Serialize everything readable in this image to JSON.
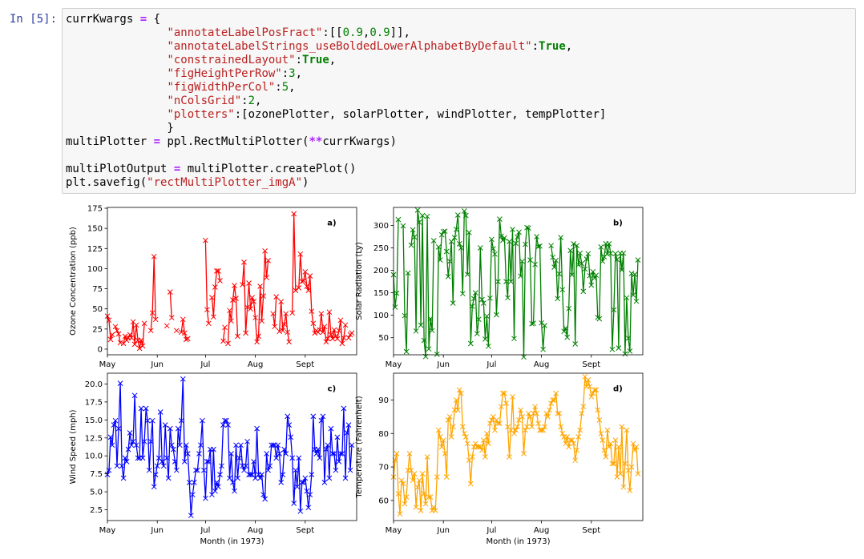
{
  "cell": {
    "prompt": "In [5]:",
    "code_lines": [
      "currKwargs = {",
      "               \"annotateLabelPosFract\":[[0.9,0.9]],",
      "               \"annotateLabelStrings_useBoldedLowerAlphabetByDefault\":True,",
      "               \"constrainedLayout\":True,",
      "               \"figHeightPerRow\":3,",
      "               \"figWidthPerCol\":5,",
      "               \"nColsGrid\":2,",
      "               \"plotters\":[ozonePlotter, solarPlotter, windPlotter, tempPlotter]",
      "               }",
      "multiPlotter = ppl.RectMultiPlotter(**currKwargs)",
      "",
      "multiPlotOutput = multiPlotter.createPlot()",
      "plt.savefig(\"rectMultiPlotter_imgA\")"
    ]
  },
  "chart_data": [
    {
      "type": "line",
      "annotation": "a)",
      "ylabel": "Ozone Concentration (ppb)",
      "xlabel": "",
      "color": "#ff0000",
      "marker": "x",
      "xlim": [
        1,
        156
      ],
      "ylim": [
        -7,
        176
      ],
      "yticks": [
        0,
        25,
        50,
        75,
        100,
        125,
        150,
        175
      ],
      "xticks": [
        {
          "label": "May",
          "day": 1
        },
        {
          "label": "Jun",
          "day": 32
        },
        {
          "label": "Jul",
          "day": 62
        },
        {
          "label": "Aug",
          "day": 93
        },
        {
          "label": "Sept",
          "day": 124
        }
      ],
      "x_description": "day index from May 1, 1973",
      "values": [
        41,
        36,
        12,
        18,
        null,
        28,
        23,
        19,
        8,
        null,
        7,
        16,
        11,
        14,
        18,
        14,
        34,
        6,
        30,
        11,
        1,
        11,
        4,
        32,
        null,
        null,
        null,
        23,
        45,
        115,
        37,
        null,
        null,
        null,
        null,
        null,
        null,
        29,
        null,
        71,
        39,
        null,
        null,
        23,
        null,
        null,
        21,
        37,
        20,
        12,
        13,
        null,
        null,
        null,
        null,
        null,
        null,
        null,
        null,
        null,
        null,
        135,
        49,
        32,
        null,
        64,
        40,
        77,
        97,
        97,
        85,
        null,
        10,
        27,
        null,
        7,
        48,
        35,
        61,
        79,
        63,
        16,
        null,
        null,
        80,
        108,
        20,
        52,
        82,
        50,
        64,
        59,
        39,
        9,
        16,
        78,
        35,
        66,
        122,
        89,
        110,
        null,
        null,
        44,
        28,
        65,
        null,
        22,
        59,
        23,
        31,
        44,
        21,
        9,
        null,
        45,
        168,
        73,
        null,
        76,
        118,
        84,
        85,
        96,
        78,
        73,
        91,
        47,
        32,
        20,
        23,
        21,
        24,
        44,
        21,
        28,
        9,
        13,
        46,
        18,
        13,
        24,
        16,
        13,
        23,
        36,
        7,
        14,
        30,
        null,
        14,
        18,
        20
      ]
    },
    {
      "type": "line",
      "annotation": "b)",
      "ylabel": "Solar Radiation (Ly)",
      "xlabel": "",
      "color": "#008000",
      "marker": "x",
      "xlim": [
        1,
        156
      ],
      "ylim": [
        12,
        340
      ],
      "yticks": [
        50,
        100,
        150,
        200,
        250,
        300
      ],
      "xticks": [
        {
          "label": "May",
          "day": 1
        },
        {
          "label": "Jun",
          "day": 32
        },
        {
          "label": "Jul",
          "day": 62
        },
        {
          "label": "Aug",
          "day": 93
        },
        {
          "label": "Sept",
          "day": 124
        }
      ],
      "x_description": "day index from May 1, 1973",
      "values": [
        190,
        118,
        149,
        313,
        null,
        null,
        299,
        99,
        19,
        194,
        null,
        256,
        290,
        274,
        65,
        334,
        307,
        78,
        322,
        44,
        8,
        320,
        25,
        92,
        66,
        266,
        null,
        13,
        252,
        223,
        279,
        286,
        287,
        242,
        186,
        220,
        264,
        127,
        273,
        291,
        323,
        259,
        250,
        148,
        332,
        322,
        191,
        284,
        37,
        120,
        137,
        150,
        59,
        91,
        250,
        135,
        127,
        47,
        98,
        31,
        138,
        269,
        248,
        236,
        101,
        175,
        314,
        276,
        267,
        272,
        175,
        139,
        264,
        175,
        291,
        48,
        260,
        274,
        285,
        187,
        220,
        7,
        258,
        295,
        294,
        223,
        81,
        82,
        213,
        275,
        253,
        254,
        83,
        24,
        77,
        null,
        null,
        null,
        255,
        229,
        207,
        222,
        137,
        192,
        273,
        157,
        64,
        71,
        51,
        115,
        244,
        190,
        259,
        36,
        255,
        212,
        238,
        215,
        153,
        203,
        225,
        237,
        188,
        167,
        197,
        183,
        189,
        95,
        92,
        252,
        220,
        230,
        259,
        236,
        259,
        238,
        24,
        112,
        237,
        224,
        27,
        238,
        201,
        238,
        14,
        139,
        49,
        20,
        193,
        145,
        191,
        131,
        223
      ]
    },
    {
      "type": "line",
      "annotation": "c)",
      "ylabel": "Wind Speed (mph)",
      "xlabel": "Month (in 1973)",
      "color": "#0000ff",
      "marker": "x",
      "xlim": [
        1,
        156
      ],
      "ylim": [
        1.0,
        21.5
      ],
      "yticks": [
        2.5,
        5.0,
        7.5,
        10.0,
        12.5,
        15.0,
        17.5,
        20.0
      ],
      "xticks": [
        {
          "label": "May",
          "day": 1
        },
        {
          "label": "Jun",
          "day": 32
        },
        {
          "label": "Jul",
          "day": 62
        },
        {
          "label": "Aug",
          "day": 93
        },
        {
          "label": "Sept",
          "day": 124
        }
      ],
      "x_description": "day index from May 1, 1973",
      "values": [
        7.4,
        8.0,
        12.6,
        11.5,
        14.3,
        14.9,
        8.6,
        13.8,
        20.1,
        8.6,
        6.9,
        9.7,
        9.2,
        10.9,
        13.2,
        11.5,
        12.0,
        18.4,
        11.5,
        9.7,
        9.7,
        16.6,
        9.7,
        12.0,
        16.6,
        14.9,
        8.0,
        12.0,
        14.9,
        5.7,
        7.4,
        8.6,
        9.7,
        16.1,
        9.2,
        8.6,
        14.3,
        9.7,
        6.9,
        13.8,
        11.5,
        10.9,
        9.2,
        8.0,
        13.8,
        11.5,
        14.9,
        20.7,
        9.2,
        11.5,
        10.3,
        6.3,
        1.7,
        4.6,
        6.3,
        8.0,
        8.0,
        10.3,
        11.5,
        14.9,
        8.0,
        4.1,
        9.2,
        9.2,
        10.9,
        4.6,
        10.9,
        5.1,
        6.3,
        5.7,
        7.4,
        8.6,
        14.3,
        14.9,
        14.9,
        14.3,
        6.9,
        10.3,
        6.3,
        5.1,
        11.5,
        6.9,
        9.7,
        11.5,
        8.6,
        8.0,
        8.6,
        12.0,
        7.4,
        7.4,
        7.4,
        9.2,
        6.9,
        13.8,
        7.4,
        6.9,
        7.4,
        4.6,
        4.0,
        10.3,
        8.0,
        8.6,
        11.5,
        11.5,
        11.5,
        9.7,
        11.5,
        10.3,
        6.3,
        7.4,
        10.9,
        10.3,
        15.5,
        14.3,
        12.6,
        9.7,
        3.4,
        8.0,
        5.7,
        9.7,
        2.3,
        6.3,
        6.3,
        6.9,
        5.1,
        2.8,
        4.6,
        7.4,
        15.5,
        10.9,
        10.3,
        10.9,
        9.7,
        14.9,
        15.5,
        6.3,
        10.9,
        11.5,
        6.9,
        13.8,
        10.3,
        10.3,
        8.0,
        12.6,
        9.2,
        10.3,
        10.3,
        16.6,
        6.9,
        13.2,
        14.3,
        8.0,
        11.5
      ]
    },
    {
      "type": "line",
      "annotation": "d)",
      "ylabel": "Temperature (Fahrenheit)",
      "xlabel": "Month (in 1973)",
      "color": "#ffa500",
      "marker": "x",
      "xlim": [
        1,
        156
      ],
      "ylim": [
        54,
        98
      ],
      "yticks": [
        60,
        70,
        80,
        90
      ],
      "xticks": [
        {
          "label": "May",
          "day": 1
        },
        {
          "label": "Jun",
          "day": 32
        },
        {
          "label": "Jul",
          "day": 62
        },
        {
          "label": "Aug",
          "day": 93
        },
        {
          "label": "Sept",
          "day": 124
        }
      ],
      "x_description": "day index from May 1, 1973",
      "values": [
        67,
        72,
        74,
        62,
        56,
        66,
        65,
        59,
        61,
        69,
        74,
        69,
        66,
        68,
        58,
        64,
        66,
        57,
        68,
        62,
        59,
        73,
        61,
        61,
        57,
        58,
        57,
        67,
        81,
        79,
        76,
        78,
        74,
        67,
        84,
        85,
        79,
        82,
        87,
        90,
        87,
        93,
        92,
        82,
        80,
        79,
        77,
        72,
        65,
        73,
        76,
        77,
        76,
        76,
        76,
        75,
        78,
        73,
        80,
        77,
        83,
        84,
        85,
        81,
        84,
        83,
        83,
        88,
        92,
        92,
        89,
        82,
        73,
        81,
        91,
        80,
        81,
        82,
        84,
        87,
        85,
        74,
        81,
        82,
        86,
        85,
        82,
        86,
        88,
        86,
        83,
        81,
        81,
        81,
        82,
        86,
        85,
        87,
        89,
        90,
        90,
        92,
        86,
        86,
        82,
        80,
        79,
        77,
        79,
        76,
        78,
        78,
        77,
        72,
        75,
        79,
        81,
        86,
        88,
        97,
        94,
        96,
        94,
        91,
        92,
        93,
        93,
        87,
        84,
        80,
        78,
        75,
        73,
        81,
        76,
        77,
        71,
        71,
        78,
        67,
        76,
        68,
        82,
        64,
        71,
        81,
        69,
        63,
        70,
        77,
        75,
        76,
        68
      ]
    }
  ]
}
